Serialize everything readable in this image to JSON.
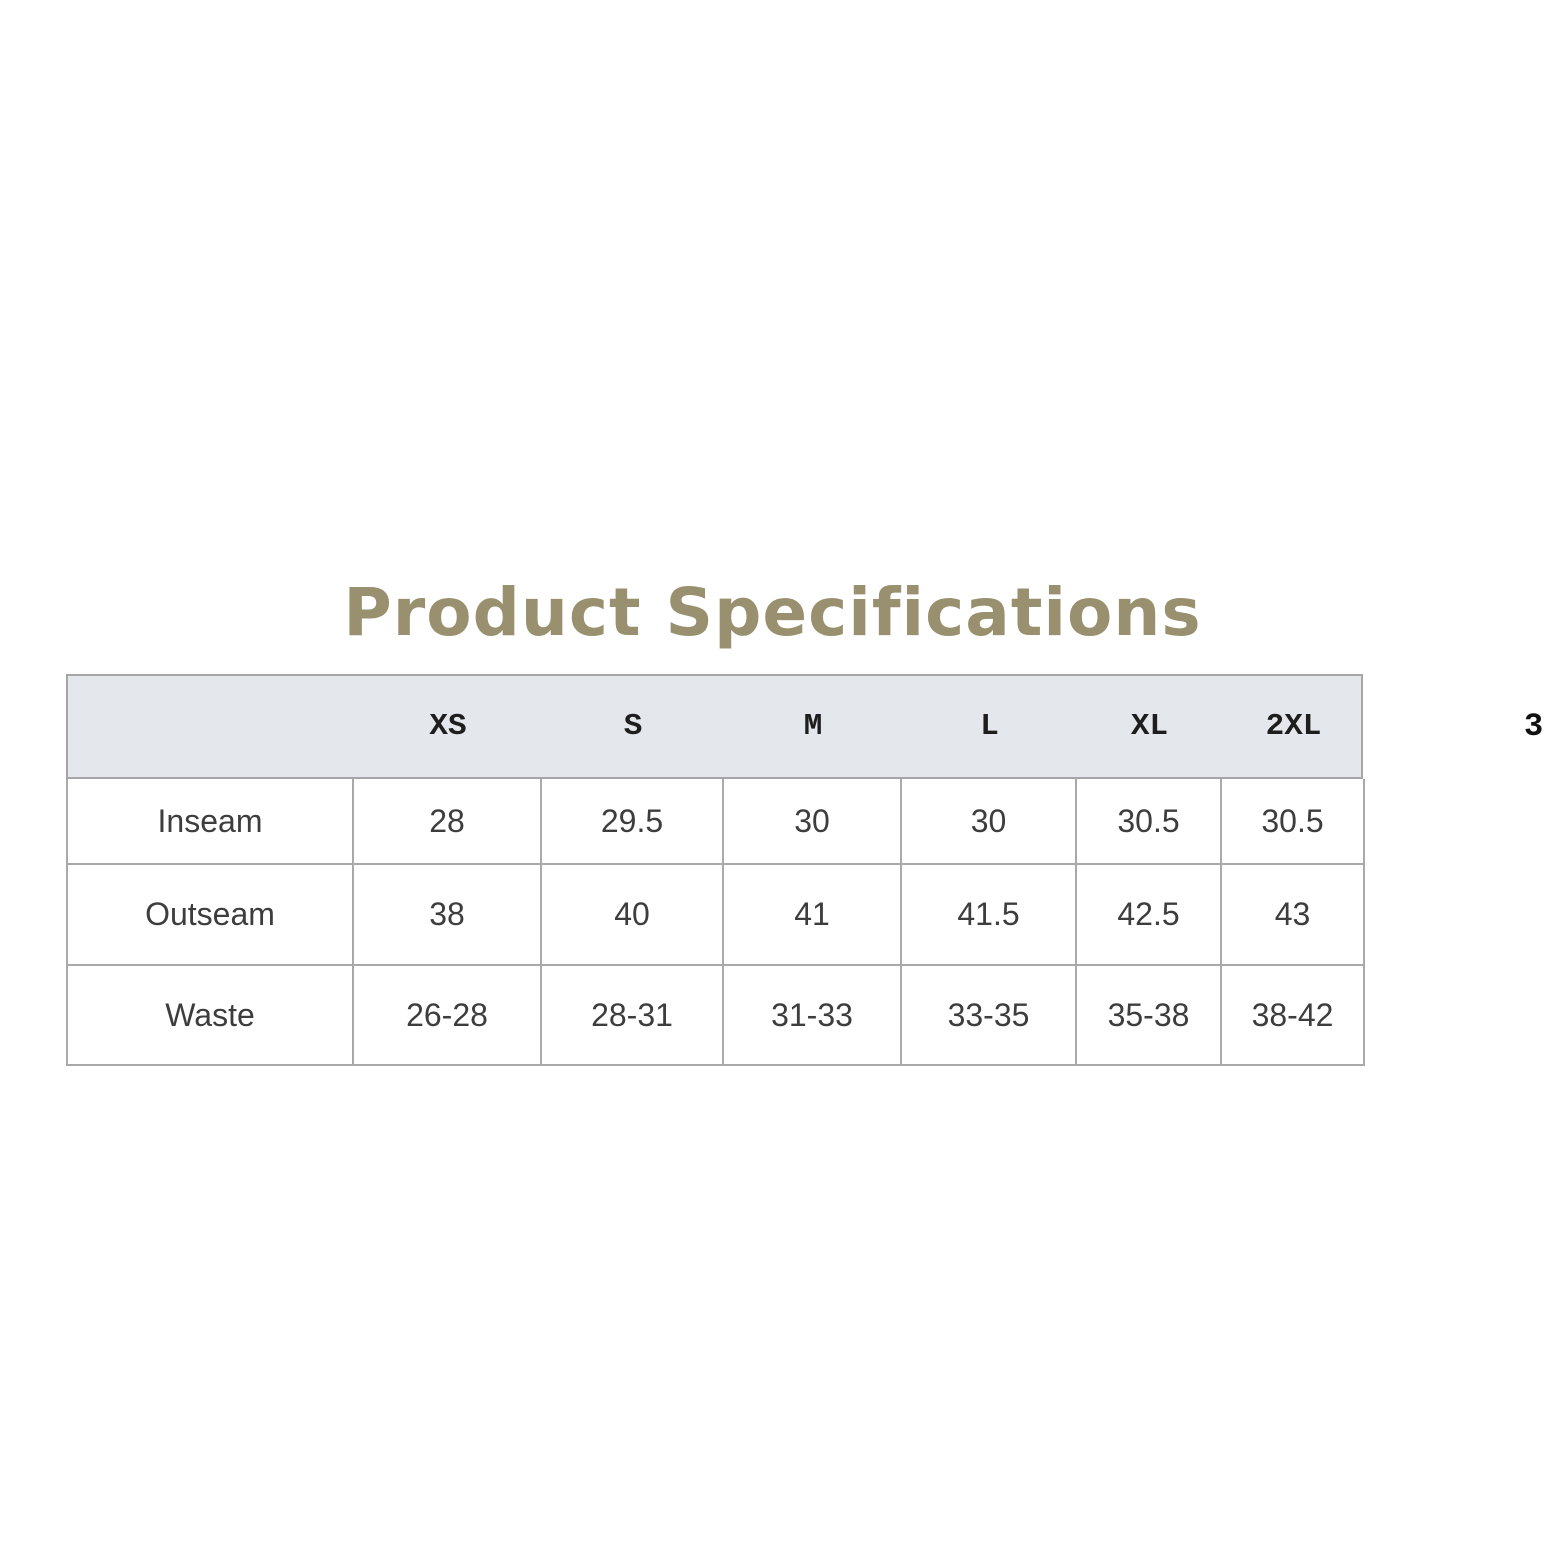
{
  "title": {
    "text": "Product Specifications",
    "color": "#99906f"
  },
  "table": {
    "header_bg": "#e4e8ec",
    "border_color": "#a9a9a9",
    "columns": [
      "",
      "XS",
      "S",
      "M",
      "L",
      "XL",
      "2XL"
    ],
    "rows": [
      {
        "label": "Inseam",
        "values": [
          "28",
          "29.5",
          "30",
          "30",
          "30.5",
          "30.5"
        ]
      },
      {
        "label": "Outseam",
        "values": [
          "38",
          "40",
          "41",
          "41.5",
          "42.5",
          "43"
        ]
      },
      {
        "label": "Waste",
        "values": [
          "26-28",
          "28-31",
          "31-33",
          "33-35",
          "35-38",
          "38-42"
        ]
      }
    ]
  },
  "edge_text": {
    "text": "3"
  }
}
